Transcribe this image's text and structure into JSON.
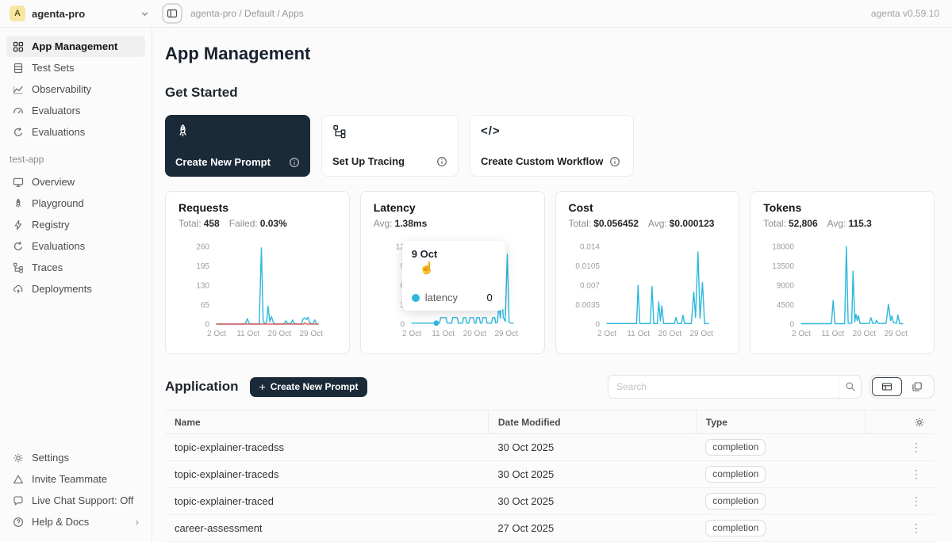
{
  "topbar": {
    "workspace_name": "agenta-pro",
    "avatar_letter": "A",
    "breadcrumb": "agenta-pro / Default / Apps",
    "version": "agenta v0.59.10"
  },
  "sidebar": {
    "main_items": [
      "App Management",
      "Test Sets",
      "Observability",
      "Evaluators",
      "Evaluations"
    ],
    "section_label": "test-app",
    "app_items": [
      "Overview",
      "Playground",
      "Registry",
      "Evaluations",
      "Traces",
      "Deployments"
    ],
    "footer_items": [
      "Settings",
      "Invite Teammate",
      "Live Chat Support: Off",
      "Help & Docs"
    ]
  },
  "page_title": "App Management",
  "get_started": {
    "heading": "Get Started",
    "cards": [
      "Create New Prompt",
      "Set Up Tracing",
      "Create Custom Workflow"
    ]
  },
  "tooltip": {
    "title": "9 Oct",
    "series_label": "latency",
    "value": "0"
  },
  "application": {
    "heading": "Application",
    "create_button_label": "Create New Prompt",
    "search_placeholder": "Search",
    "columns": [
      "Name",
      "Date Modified",
      "Type"
    ],
    "rows": [
      {
        "name": "topic-explainer-tracedss",
        "date": "30 Oct 2025",
        "type": "completion"
      },
      {
        "name": "topic-explainer-traceds",
        "date": "30 Oct 2025",
        "type": "completion"
      },
      {
        "name": "topic-explainer-traced",
        "date": "30 Oct 2025",
        "type": "completion"
      },
      {
        "name": "career-assessment",
        "date": "27 Oct 2025",
        "type": "completion"
      }
    ]
  },
  "icons": {
    "kebab": "⋮",
    "chevron_right": "›",
    "cursor": "☝",
    "code": "</>",
    "plus": "+"
  },
  "colors": {
    "accent": "#2cb8dc",
    "danger": "#e25c5c",
    "navy": "#1b2a39",
    "avatar_bg": "#f6e7a4"
  },
  "chart_data": [
    {
      "type": "line",
      "title": "Requests",
      "stats": [
        {
          "label": "Total:",
          "value": "458"
        },
        {
          "label": "Failed:",
          "value": "0.03%"
        }
      ],
      "yticks": [
        "260",
        "195",
        "130",
        "65",
        "0"
      ],
      "xticks": [
        {
          "day": 2,
          "label": "2 Oct"
        },
        {
          "day": 11,
          "label": "11 Oct"
        },
        {
          "day": 20,
          "label": "20 Oct"
        },
        {
          "day": 29,
          "label": "29 Oct"
        }
      ],
      "series": [
        {
          "name": "requests",
          "color": "#2cb8dc",
          "points": [
            [
              2,
              0
            ],
            [
              9.8,
              0
            ],
            [
              10.2,
              2
            ],
            [
              10.8,
              18
            ],
            [
              11.3,
              3
            ],
            [
              11.8,
              0
            ],
            [
              13.8,
              0
            ],
            [
              14.2,
              3
            ],
            [
              14.8,
              255
            ],
            [
              15.3,
              10
            ],
            [
              15.7,
              2
            ],
            [
              16.3,
              8
            ],
            [
              16.7,
              60
            ],
            [
              17.2,
              8
            ],
            [
              17.7,
              25
            ],
            [
              18.2,
              5
            ],
            [
              18.7,
              0
            ],
            [
              21,
              0
            ],
            [
              21.4,
              3
            ],
            [
              21.8,
              11
            ],
            [
              22.3,
              2
            ],
            [
              23.2,
              2
            ],
            [
              23.7,
              14
            ],
            [
              24.2,
              2
            ],
            [
              25,
              0
            ],
            [
              26.2,
              0
            ],
            [
              26.7,
              17
            ],
            [
              27.2,
              21
            ],
            [
              27.7,
              15
            ],
            [
              28.1,
              23
            ],
            [
              28.6,
              5
            ],
            [
              29.2,
              0
            ],
            [
              29.6,
              2
            ],
            [
              30,
              14
            ],
            [
              30.5,
              2
            ],
            [
              31,
              0
            ]
          ]
        },
        {
          "name": "failed",
          "color": "#e25c5c",
          "points": [
            [
              2,
              0
            ],
            [
              26.8,
              0
            ],
            [
              27.3,
              4
            ],
            [
              27.8,
              0
            ],
            [
              31,
              0
            ]
          ]
        }
      ]
    },
    {
      "type": "line",
      "title": "Latency",
      "stats": [
        {
          "label": "Avg:",
          "value": "1.38ms"
        }
      ],
      "yticks": [
        "12",
        "9",
        "6",
        "3",
        "0"
      ],
      "xticks": [
        {
          "day": 2,
          "label": "2 Oct"
        },
        {
          "day": 11,
          "label": "11 Oct"
        },
        {
          "day": 20,
          "label": "20 Oct"
        },
        {
          "day": 29,
          "label": "29 Oct"
        }
      ],
      "marker": {
        "day": 9,
        "value": 0.15,
        "color": "#2cb8dc"
      },
      "series": [
        {
          "name": "latency",
          "color": "#2cb8dc",
          "points": [
            [
              2,
              0.15
            ],
            [
              9.9,
              0.15
            ],
            [
              10.3,
              1
            ],
            [
              11.8,
              1
            ],
            [
              12.1,
              0.15
            ],
            [
              13.4,
              0.15
            ],
            [
              13.7,
              1
            ],
            [
              15,
              1
            ],
            [
              15.3,
              0.15
            ],
            [
              16.5,
              0.15
            ],
            [
              16.8,
              1
            ],
            [
              17.4,
              1
            ],
            [
              17.7,
              0.15
            ],
            [
              18.3,
              0.15
            ],
            [
              18.6,
              1
            ],
            [
              19.6,
              1
            ],
            [
              19.9,
              0.15
            ],
            [
              20.3,
              0.15
            ],
            [
              20.6,
              1
            ],
            [
              21.3,
              1
            ],
            [
              21.6,
              0.15
            ],
            [
              22,
              0.15
            ],
            [
              22.3,
              1
            ],
            [
              23.2,
              1
            ],
            [
              23.5,
              0.15
            ],
            [
              24.8,
              0.15
            ],
            [
              25.1,
              1
            ],
            [
              25.7,
              1
            ],
            [
              26,
              0.15
            ],
            [
              26.5,
              0.3
            ],
            [
              26.9,
              3
            ],
            [
              27.3,
              0.9
            ],
            [
              27.7,
              5.8
            ],
            [
              28.1,
              1.1
            ],
            [
              28.7,
              0.4
            ],
            [
              29.3,
              10.8
            ],
            [
              29.8,
              0.3
            ],
            [
              30.3,
              0.15
            ],
            [
              31,
              0.15
            ]
          ]
        }
      ]
    },
    {
      "type": "line",
      "title": "Cost",
      "stats": [
        {
          "label": "Total:",
          "value": "$0.056452"
        },
        {
          "label": "Avg:",
          "value": "$0.000123"
        }
      ],
      "yticks": [
        "0.014",
        "0.0105",
        "0.007",
        "0.0035",
        "0"
      ],
      "xticks": [
        {
          "day": 2,
          "label": "2 Oct"
        },
        {
          "day": 11,
          "label": "11 Oct"
        },
        {
          "day": 20,
          "label": "20 Oct"
        },
        {
          "day": 29,
          "label": "29 Oct"
        }
      ],
      "series": [
        {
          "name": "cost",
          "color": "#2cb8dc",
          "points": [
            [
              2,
              0.0001
            ],
            [
              10.5,
              0.0001
            ],
            [
              10.9,
              0.007
            ],
            [
              11.4,
              0.0001
            ],
            [
              14.4,
              0.0001
            ],
            [
              14.9,
              0.0068
            ],
            [
              15.4,
              0.0001
            ],
            [
              16.4,
              0.0001
            ],
            [
              16.8,
              0.004
            ],
            [
              17.3,
              0.0006
            ],
            [
              17.7,
              0.0033
            ],
            [
              18.2,
              0.0001
            ],
            [
              21.3,
              0.0001
            ],
            [
              21.7,
              0.0012
            ],
            [
              22.2,
              0.0001
            ],
            [
              23.3,
              0.0001
            ],
            [
              23.7,
              0.0016
            ],
            [
              24.2,
              0.0001
            ],
            [
              26.1,
              0.0001
            ],
            [
              26.8,
              0.0058
            ],
            [
              27.3,
              0.0012
            ],
            [
              28,
              0.013
            ],
            [
              28.6,
              0.001
            ],
            [
              29.3,
              0.0075
            ],
            [
              29.9,
              0.0001
            ],
            [
              31,
              0.0001
            ]
          ]
        }
      ]
    },
    {
      "type": "line",
      "title": "Tokens",
      "stats": [
        {
          "label": "Total:",
          "value": "52,806"
        },
        {
          "label": "Avg:",
          "value": "115.3"
        }
      ],
      "yticks": [
        "18000",
        "13500",
        "9000",
        "4500",
        "0"
      ],
      "xticks": [
        {
          "day": 2,
          "label": "2 Oct"
        },
        {
          "day": 11,
          "label": "11 Oct"
        },
        {
          "day": 20,
          "label": "20 Oct"
        },
        {
          "day": 29,
          "label": "29 Oct"
        }
      ],
      "series": [
        {
          "name": "tokens",
          "color": "#2cb8dc",
          "points": [
            [
              2,
              100
            ],
            [
              10.6,
              100
            ],
            [
              11.1,
              5500
            ],
            [
              11.6,
              100
            ],
            [
              14.4,
              100
            ],
            [
              14.9,
              18000
            ],
            [
              15.4,
              200
            ],
            [
              16.4,
              200
            ],
            [
              16.8,
              12300
            ],
            [
              17.3,
              500
            ],
            [
              17.6,
              2300
            ],
            [
              18,
              800
            ],
            [
              18.3,
              2000
            ],
            [
              18.8,
              150
            ],
            [
              21.4,
              150
            ],
            [
              21.9,
              1500
            ],
            [
              22.4,
              200
            ],
            [
              23.1,
              200
            ],
            [
              23.5,
              900
            ],
            [
              23.9,
              150
            ],
            [
              26.2,
              150
            ],
            [
              26.9,
              4600
            ],
            [
              27.5,
              800
            ],
            [
              27.9,
              1900
            ],
            [
              28.3,
              350
            ],
            [
              29.2,
              200
            ],
            [
              29.6,
              2100
            ],
            [
              30.1,
              100
            ],
            [
              31,
              100
            ]
          ]
        }
      ]
    }
  ]
}
